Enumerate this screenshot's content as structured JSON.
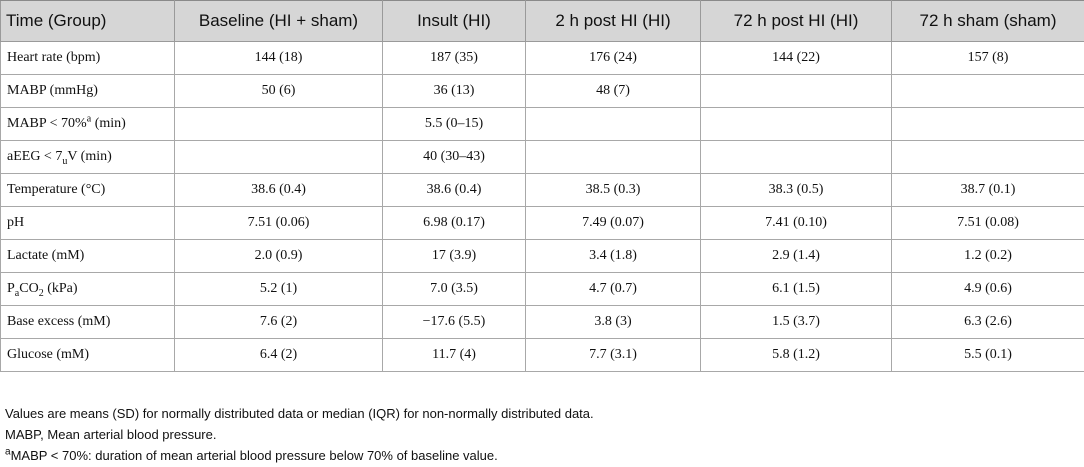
{
  "table": {
    "headers": [
      "Time (Group)",
      "Baseline (HI + sham)",
      "Insult (HI)",
      "2 h post HI (HI)",
      "72 h post HI (HI)",
      "72 h sham (sham)"
    ],
    "rows": [
      {
        "label": "Heart rate (bpm)",
        "cells": [
          "144 (18)",
          "187 (35)",
          "176 (24)",
          "144 (22)",
          "157 (8)"
        ]
      },
      {
        "label": "MABP (mmHg)",
        "cells": [
          "50 (6)",
          "36 (13)",
          "48 (7)",
          "",
          ""
        ]
      },
      {
        "label_parts": {
          "main": "MABP < 70%",
          "sup": "a",
          "tail": " (min)"
        },
        "cells": [
          "",
          "5.5 (0–15)",
          "",
          "",
          ""
        ]
      },
      {
        "label_parts": {
          "main": "aEEG < 7",
          "sub": "u",
          "tail": "V (min)"
        },
        "cells": [
          "",
          "40 (30–43)",
          "",
          "",
          ""
        ]
      },
      {
        "label": "Temperature (°C)",
        "cells": [
          "38.6 (0.4)",
          "38.6 (0.4)",
          "38.5 (0.3)",
          "38.3 (0.5)",
          "38.7 (0.1)"
        ]
      },
      {
        "label": "pH",
        "cells": [
          "7.51 (0.06)",
          "6.98 (0.17)",
          "7.49 (0.07)",
          "7.41 (0.10)",
          "7.51 (0.08)"
        ]
      },
      {
        "label": "Lactate (mM)",
        "cells": [
          "2.0 (0.9)",
          "17 (3.9)",
          "3.4 (1.8)",
          "2.9 (1.4)",
          "1.2 (0.2)"
        ]
      },
      {
        "label_parts": {
          "main": "P",
          "sub": "a",
          "mid": "CO",
          "sub2": "2",
          "tail": " (kPa)"
        },
        "cells": [
          "5.2 (1)",
          "7.0 (3.5)",
          "4.7 (0.7)",
          "6.1 (1.5)",
          "4.9 (0.6)"
        ]
      },
      {
        "label": "Base excess (mM)",
        "cells": [
          "7.6 (2)",
          "−17.6 (5.5)",
          "3.8 (3)",
          "1.5 (3.7)",
          "6.3 (2.6)"
        ]
      },
      {
        "label": "Glucose (mM)",
        "cells": [
          "6.4 (2)",
          "11.7 (4)",
          "7.7 (3.1)",
          "5.8 (1.2)",
          "5.5 (0.1)"
        ]
      }
    ]
  },
  "footnotes": {
    "line1": "Values are means (SD) for normally distributed data or median (IQR) for non-normally distributed data.",
    "line2": "MABP, Mean arterial blood pressure.",
    "line3_sup": "a",
    "line3": "MABP < 70%: duration of mean arterial blood pressure below 70% of baseline value."
  },
  "colors": {
    "header_bg": "#d6d6d6",
    "border": "#a8a8a8",
    "text": "#111111"
  }
}
